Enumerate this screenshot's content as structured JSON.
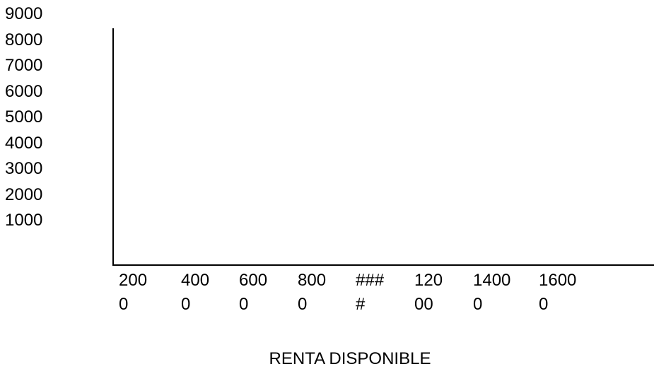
{
  "chart_data": {
    "type": "line",
    "title": "",
    "xlabel": "RENTA DISPONIBLE",
    "ylabel": "",
    "y_ticks": [
      "9000",
      "8000",
      "7000",
      "6000",
      "5000",
      "4000",
      "3000",
      "2000",
      "1000"
    ],
    "x_ticks": [
      {
        "line1": "200",
        "line2": "0"
      },
      {
        "line1": "400",
        "line2": "0"
      },
      {
        "line1": "600",
        "line2": "0"
      },
      {
        "line1": "800",
        "line2": "0"
      },
      {
        "line1": "###",
        "line2": "#"
      },
      {
        "line1": "120",
        "line2": "00"
      },
      {
        "line1": "1400",
        "line2": "0"
      },
      {
        "line1": "1600",
        "line2": "0"
      }
    ],
    "series": [],
    "grid": false,
    "legend": "none"
  }
}
